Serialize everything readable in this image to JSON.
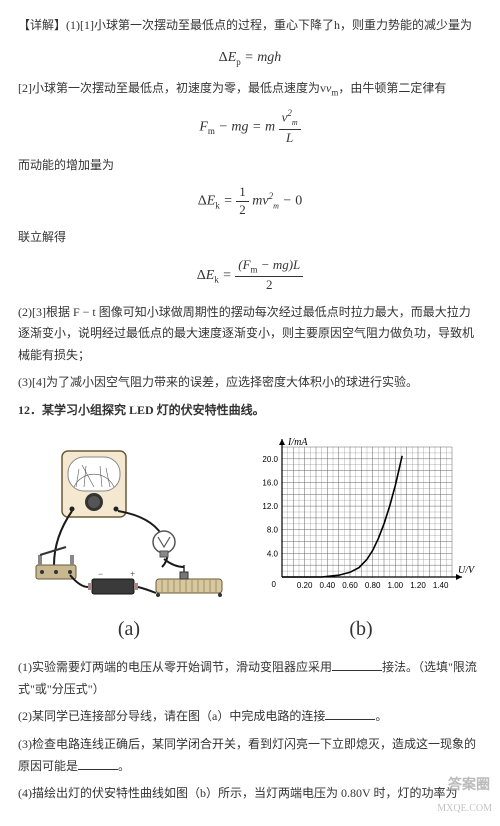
{
  "p1": "【详解】(1)[1]小球第一次摆动至最低点的过程，重心下降了h，则重力势能的减少量为",
  "p2": "[2]小球第一次摆动至最低点，初速度为零，最低点速度为v",
  "p2b": "，由牛顿第二定律有",
  "p3": "而动能的增加量为",
  "p4": "联立解得",
  "p5": "(2)[3]根据 F − t 图像可知小球做周期性的摆动每次经过最低点时拉力最大，而最大拉力逐渐变小，说明经过最低点的最大速度逐渐变小，则主要原因空气阻力做负功，导致机械能有损失；",
  "p6": "(3)[4]为了减小因空气阻力带来的误差，应选择密度大体积小的球进行实验。",
  "q12": "12．某学习小组探究 LED 灯的伏安特性曲线。",
  "q1": "(1)实验需要灯两端的电压从零开始调节，滑动变阻器应采用",
  "q1b": "接法。（选填\"限流式\"或\"分压式\"）",
  "q2": "(2)某同学已连接部分导线，请在图（a）中完成电路的连接",
  "q2b": "。",
  "q3": "(3)检查电路连线正确后，某同学闭合开关，看到灯闪亮一下立即熄灭，造成这一现象的原因可能是",
  "q3b": "。",
  "q4": "(4)描绘出灯的伏安特性曲线如图（b）所示，当灯两端电压为 0.80V 时，灯的功率为",
  "capA": "(a)",
  "capB": "(b)",
  "chart": {
    "xlabel": "U/V",
    "ylabel": "I/mA",
    "xticks": [
      "0.20",
      "0.40",
      "0.60",
      "0.80",
      "1.00",
      "1.20",
      "1.40"
    ],
    "yticks": [
      "4.0",
      "8.0",
      "12.0",
      "16.0",
      "20.0"
    ],
    "curve": [
      [
        0,
        0
      ],
      [
        0.35,
        0
      ],
      [
        0.5,
        0.3
      ],
      [
        0.6,
        0.8
      ],
      [
        0.68,
        1.6
      ],
      [
        0.75,
        3.0
      ],
      [
        0.8,
        4.5
      ],
      [
        0.85,
        6.5
      ],
      [
        0.9,
        9.0
      ],
      [
        0.95,
        12.0
      ],
      [
        1.0,
        15.5
      ],
      [
        1.03,
        18.0
      ],
      [
        1.06,
        20.5
      ]
    ],
    "axis_color": "#000",
    "grid_color": "#666",
    "curve_color": "#000",
    "xlim": [
      0,
      1.5
    ],
    "ylim": [
      0,
      22
    ]
  },
  "wm1": "MXQE.COM",
  "wm2": "答案圈"
}
